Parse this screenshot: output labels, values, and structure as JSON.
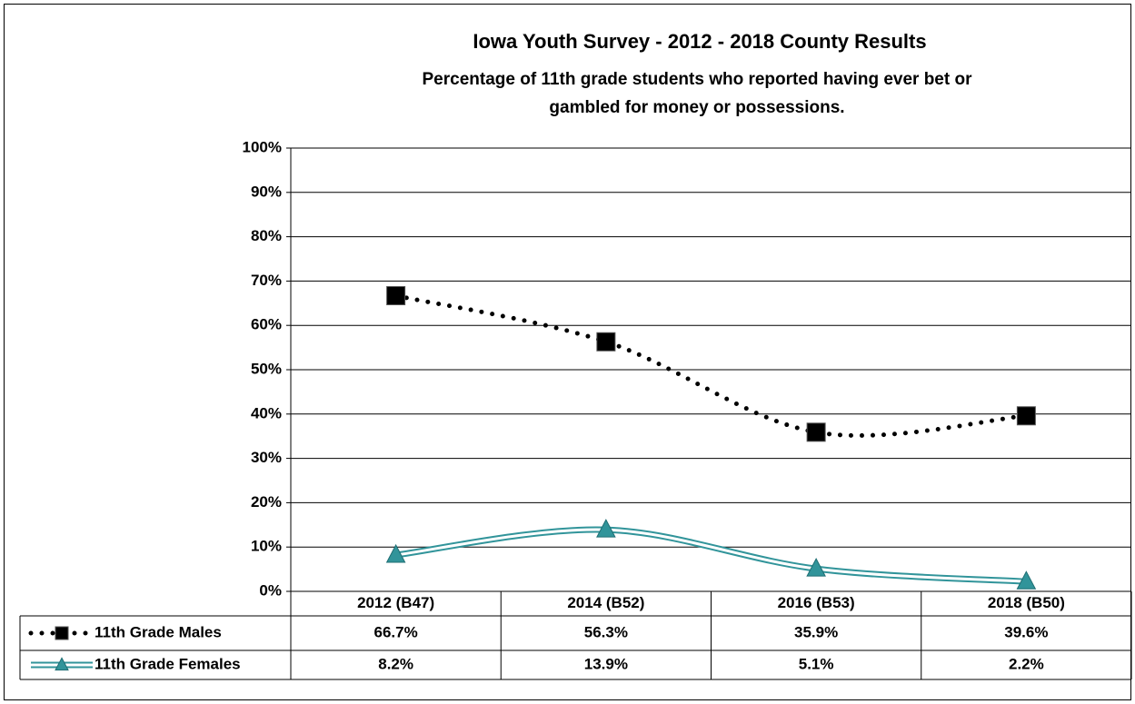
{
  "chart_data": {
    "type": "line",
    "title": "Iowa Youth Survey - 2012 - 2018 County Results",
    "subtitle": [
      "Percentage of 11th grade students who reported having ever bet or",
      "gambled for money or possessions."
    ],
    "categories": [
      "2012 (B47)",
      "2014 (B52)",
      "2016 (B53)",
      "2018 (B50)"
    ],
    "series": [
      {
        "name": "11th Grade Males",
        "color": "#000000",
        "marker": "square",
        "line": "dotted",
        "values": [
          66.7,
          56.3,
          35.9,
          39.6
        ],
        "value_labels": [
          "66.7%",
          "56.3%",
          "35.9%",
          "39.6%"
        ]
      },
      {
        "name": "11th Grade Females",
        "color": "#31949a",
        "marker": "triangle",
        "line": "double",
        "values": [
          8.2,
          13.9,
          5.1,
          2.2
        ],
        "value_labels": [
          "8.2%",
          "13.9%",
          "5.1%",
          "2.2%"
        ]
      }
    ],
    "ylim": [
      0,
      100
    ],
    "yticks": [
      {
        "value": 0,
        "label": "0%"
      },
      {
        "value": 10,
        "label": "10%"
      },
      {
        "value": 20,
        "label": "20%"
      },
      {
        "value": 30,
        "label": "30%"
      },
      {
        "value": 40,
        "label": "40%"
      },
      {
        "value": 50,
        "label": "50%"
      },
      {
        "value": 60,
        "label": "60%"
      },
      {
        "value": 70,
        "label": "70%"
      },
      {
        "value": 80,
        "label": "80%"
      },
      {
        "value": 90,
        "label": "90%"
      },
      {
        "value": 100,
        "label": "100%"
      }
    ],
    "grid": true
  }
}
